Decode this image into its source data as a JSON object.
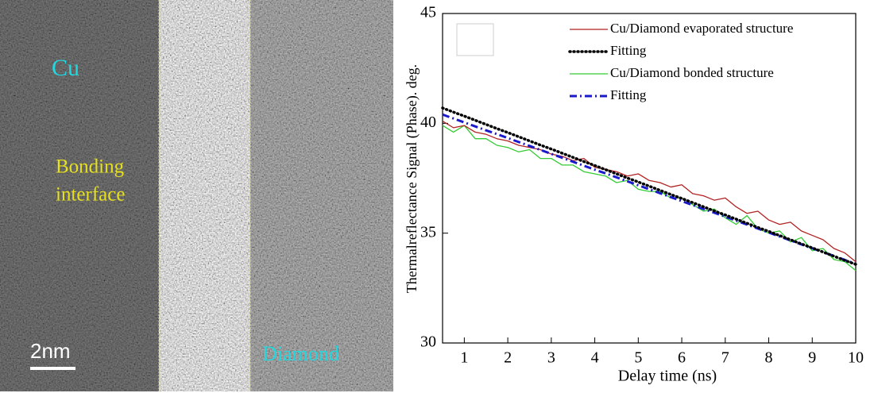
{
  "image": {
    "labels": [
      "Cu",
      "Bonding",
      "interface",
      "2nm",
      "Diamond"
    ]
  },
  "chart_data": {
    "type": "line",
    "xlabel": "Delay time (ns)",
    "ylabel": "Thermalreflectance Signal (Phase). deg.",
    "xlim": [
      0.5,
      10
    ],
    "xticks": [
      1,
      2,
      3,
      4,
      5,
      6,
      7,
      8,
      9,
      10
    ],
    "ylim": [
      30,
      45
    ],
    "yticks": [
      30,
      35,
      40,
      45
    ],
    "x": [
      0.5,
      0.75,
      1,
      1.25,
      1.5,
      1.75,
      2,
      2.25,
      2.5,
      2.75,
      3,
      3.25,
      3.5,
      3.75,
      4,
      4.25,
      4.5,
      4.75,
      5,
      5.25,
      5.5,
      5.75,
      6,
      6.25,
      6.5,
      6.75,
      7,
      7.25,
      7.5,
      7.75,
      8,
      8.25,
      8.5,
      8.75,
      9,
      9.25,
      9.5,
      9.75,
      10
    ],
    "series": [
      {
        "name": "Cu/Diamond evaporated structure",
        "color": "#b22222",
        "dash": "solid",
        "values": [
          40.1,
          39.8,
          39.9,
          39.6,
          39.5,
          39.3,
          39.2,
          39.0,
          38.9,
          38.8,
          38.6,
          38.5,
          38.3,
          38.4,
          38.0,
          37.9,
          37.8,
          37.6,
          37.7,
          37.4,
          37.3,
          37.1,
          37.2,
          36.8,
          36.7,
          36.5,
          36.6,
          36.2,
          35.9,
          36.0,
          35.6,
          35.4,
          35.5,
          35.1,
          34.9,
          34.7,
          34.3,
          34.1,
          33.7
        ]
      },
      {
        "name": "Fitting",
        "color": "#000000",
        "dash": "dotted",
        "values": [
          40.7,
          40.51,
          40.33,
          40.14,
          39.95,
          39.76,
          39.58,
          39.39,
          39.2,
          39.01,
          38.83,
          38.64,
          38.45,
          38.26,
          38.08,
          37.89,
          37.7,
          37.51,
          37.33,
          37.14,
          36.95,
          36.76,
          36.58,
          36.39,
          36.2,
          36.01,
          35.83,
          35.64,
          35.45,
          35.26,
          35.08,
          34.89,
          34.7,
          34.51,
          34.33,
          34.14,
          33.95,
          33.76,
          33.58
        ]
      },
      {
        "name": "Cu/Diamond bonded structure",
        "color": "#33cc33",
        "dash": "solid",
        "values": [
          39.9,
          39.6,
          39.9,
          39.3,
          39.3,
          39.0,
          38.9,
          38.7,
          38.8,
          38.4,
          38.4,
          38.1,
          38.1,
          37.8,
          37.7,
          37.6,
          37.3,
          37.4,
          37.0,
          36.9,
          36.9,
          36.6,
          36.6,
          36.3,
          36.0,
          36.1,
          35.7,
          35.4,
          35.8,
          35.2,
          35.0,
          35.1,
          34.6,
          34.8,
          34.2,
          34.3,
          33.8,
          33.7,
          33.3
        ]
      },
      {
        "name": "Fitting",
        "color": "#1a1acc",
        "dash": "dashdot",
        "values": [
          40.4,
          40.22,
          40.04,
          39.86,
          39.68,
          39.51,
          39.33,
          39.15,
          38.97,
          38.79,
          38.61,
          38.43,
          38.25,
          38.07,
          37.89,
          37.72,
          37.54,
          37.36,
          37.18,
          37.0,
          36.82,
          36.64,
          36.46,
          36.28,
          36.1,
          35.93,
          35.75,
          35.57,
          35.39,
          35.21,
          35.03,
          34.85,
          34.67,
          34.49,
          34.31,
          34.14,
          33.96,
          33.78,
          33.6
        ]
      }
    ]
  }
}
